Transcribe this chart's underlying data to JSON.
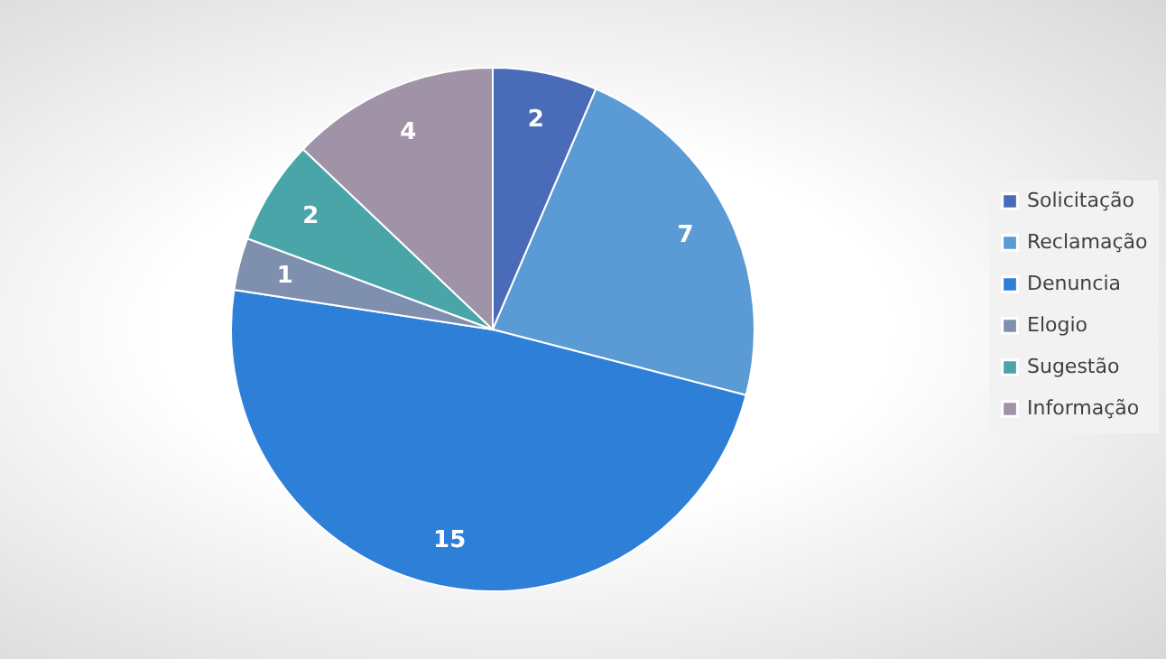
{
  "chart_data": {
    "type": "pie",
    "categories": [
      "Solicitação",
      "Reclamação",
      "Denuncia",
      "Elogio",
      "Sugestão",
      "Informação"
    ],
    "values": [
      2,
      7,
      15,
      1,
      2,
      4
    ],
    "colors": [
      "#4a6cb8",
      "#5b9bd5",
      "#2e7fd8",
      "#7f8fae",
      "#4aa5a8",
      "#a093a8"
    ],
    "data_labels": true,
    "legend": "right"
  }
}
